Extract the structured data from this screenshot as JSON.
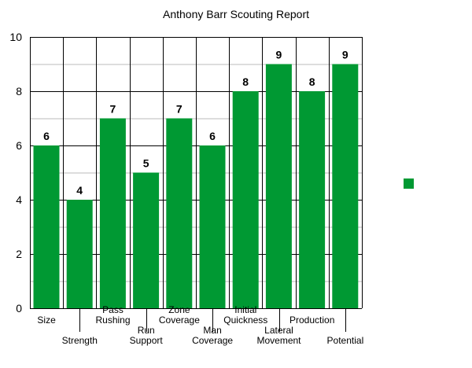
{
  "chart_data": {
    "type": "bar",
    "title": "Anthony Barr Scouting Report",
    "xlabel": "",
    "ylabel": "",
    "ylim": [
      0,
      10
    ],
    "yticks": [
      0,
      2,
      4,
      6,
      8,
      10
    ],
    "grid": true,
    "categories": [
      [
        "Size"
      ],
      [
        "Strength"
      ],
      [
        "Pass",
        "Rushing"
      ],
      [
        "Run",
        "Support"
      ],
      [
        "Zone",
        "Coverage"
      ],
      [
        "Man",
        "Coverage"
      ],
      [
        "Initial",
        "Quickness"
      ],
      [
        "Lateral",
        "Movement"
      ],
      [
        "Production"
      ],
      [
        "Potential"
      ]
    ],
    "series": [
      {
        "values": [
          6,
          4,
          7,
          5,
          7,
          6,
          8,
          9,
          8,
          9
        ],
        "color": "#009933"
      }
    ],
    "legend": {
      "placement": "right",
      "entries": [
        ""
      ]
    }
  }
}
